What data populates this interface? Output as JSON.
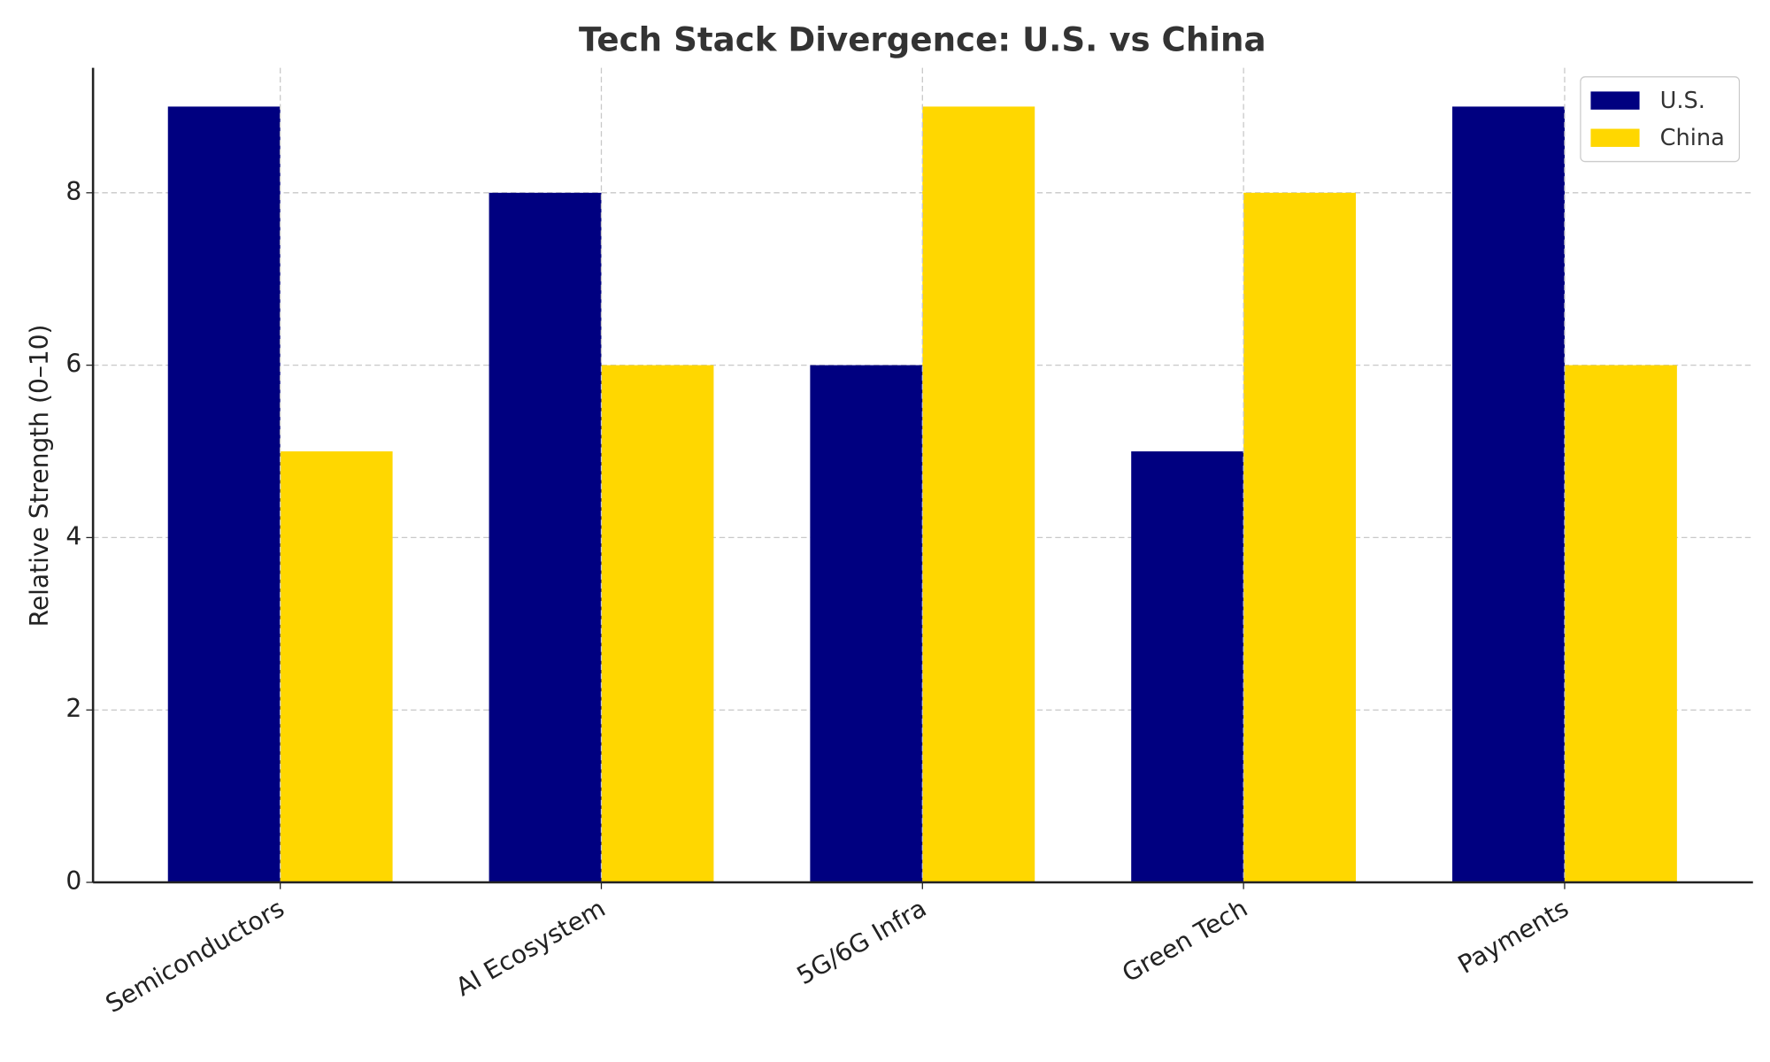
{
  "chart_data": {
    "type": "bar",
    "title": "Tech Stack Divergence: U.S. vs China",
    "y_label": "Relative Strength (0–10)",
    "categories": [
      "Semiconductors",
      "AI Ecosystem",
      "5G/6G Infra",
      "Green Tech",
      "Payments"
    ],
    "series": [
      {
        "name": "U.S.",
        "color": "#000080",
        "values": [
          9,
          8,
          6,
          5,
          9
        ]
      },
      {
        "name": "China",
        "color": "#FFD700",
        "values": [
          5,
          6,
          9,
          8,
          6
        ]
      }
    ],
    "ylim": [
      0,
      9.45
    ],
    "yticks": [
      0,
      2,
      4,
      6,
      8
    ],
    "grid": true,
    "legend": "upper-right"
  }
}
